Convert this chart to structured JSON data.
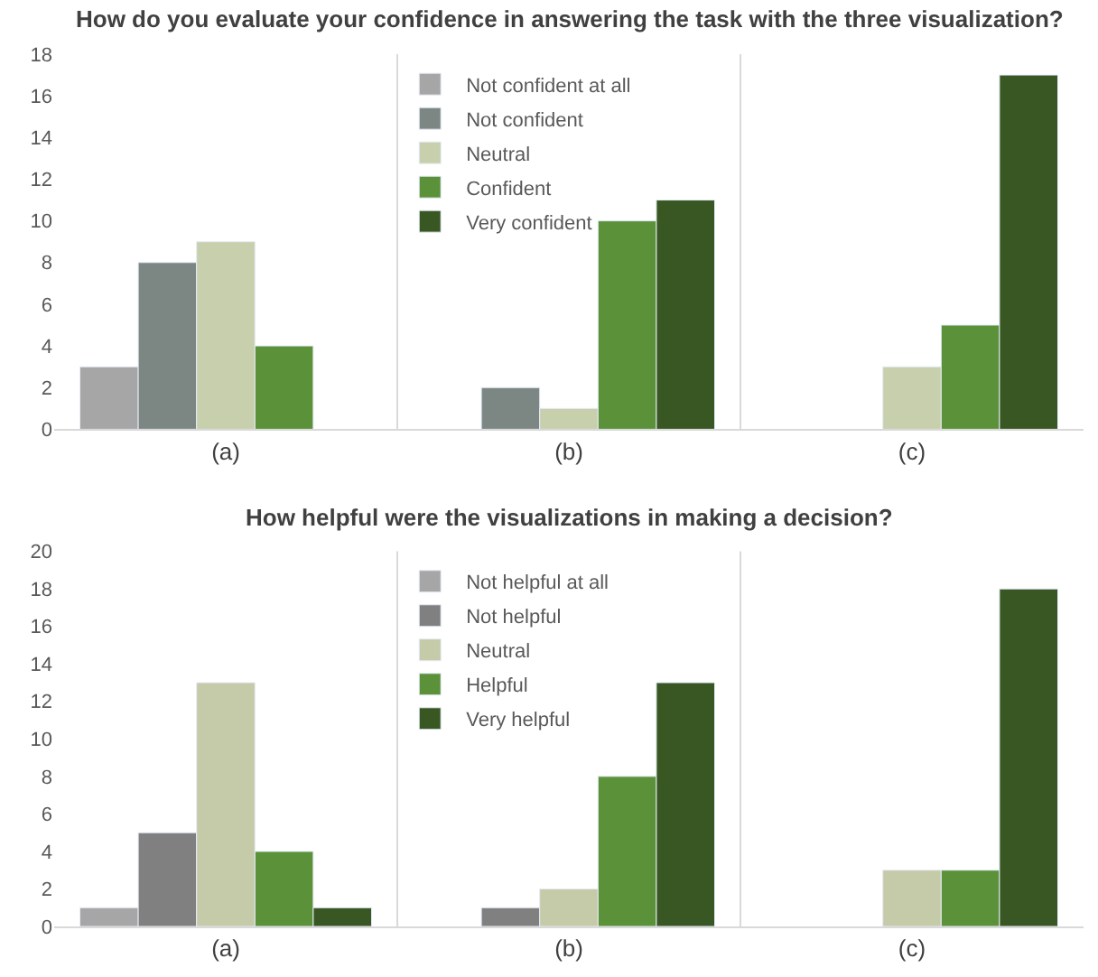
{
  "chart_data": [
    {
      "type": "bar",
      "title": "How do you evaluate your confidence in answering the task with the three visualization?",
      "categories": [
        "(a)",
        "(b)",
        "(c)"
      ],
      "ylim": [
        0,
        18
      ],
      "yticks": [
        0,
        2,
        4,
        6,
        8,
        10,
        12,
        14,
        16,
        18
      ],
      "grid": "x",
      "legend": "top",
      "series": [
        {
          "name": "Not confident at all",
          "color": "#a6a6a6",
          "values": [
            3,
            null,
            null
          ]
        },
        {
          "name": "Not confident",
          "color": "#7c8784",
          "values": [
            8,
            2,
            null
          ]
        },
        {
          "name": "Neutral",
          "color": "#c8cfac",
          "values": [
            9,
            1,
            3
          ]
        },
        {
          "name": "Confident",
          "color": "#5b9139",
          "values": [
            4,
            10,
            5
          ]
        },
        {
          "name": "Very confident",
          "color": "#385723",
          "values": [
            null,
            11,
            17
          ]
        }
      ]
    },
    {
      "type": "bar",
      "title": "How helpful were the visualizations in making a decision?",
      "categories": [
        "(a)",
        "(b)",
        "(c)"
      ],
      "ylim": [
        0,
        20
      ],
      "yticks": [
        0,
        2,
        4,
        6,
        8,
        10,
        12,
        14,
        16,
        18,
        20
      ],
      "grid": "x",
      "legend": "top",
      "series": [
        {
          "name": "Not helpful at all",
          "color": "#a6a6a6",
          "values": [
            1,
            null,
            null
          ]
        },
        {
          "name": "Not helpful",
          "color": "#808080",
          "values": [
            5,
            1,
            null
          ]
        },
        {
          "name": "Neutral",
          "color": "#c5caa9",
          "values": [
            13,
            2,
            3
          ]
        },
        {
          "name": "Helpful",
          "color": "#5b9139",
          "values": [
            4,
            8,
            3
          ]
        },
        {
          "name": "Very helpful",
          "color": "#385723",
          "values": [
            1,
            13,
            18
          ]
        }
      ]
    }
  ]
}
